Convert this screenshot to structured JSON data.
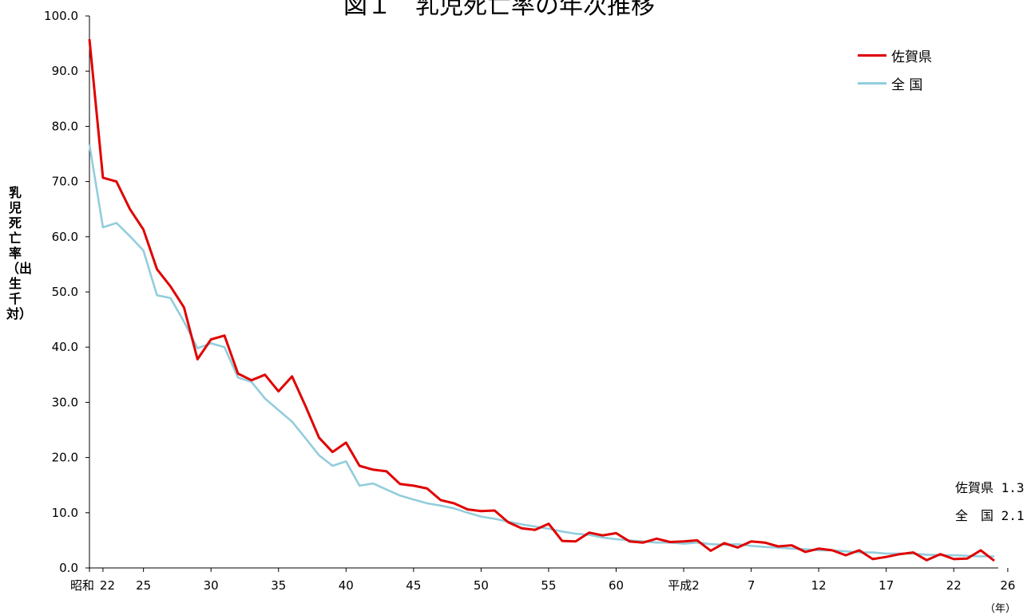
{
  "chart_data": {
    "type": "line",
    "title": "図１　乳児死亡率の年次推移",
    "ylabel": "乳児死亡率（出生千対）",
    "xunit": "（年）",
    "ylim": [
      0,
      100
    ],
    "yticks": [
      "0.0",
      "10.0",
      "20.0",
      "30.0",
      "40.0",
      "50.0",
      "60.0",
      "70.0",
      "80.0",
      "90.0",
      "100.0"
    ],
    "xticks": [
      {
        "i": 0,
        "label": "昭和"
      },
      {
        "i": 1,
        "label": "22"
      },
      {
        "i": 4,
        "label": "25"
      },
      {
        "i": 9,
        "label": "30"
      },
      {
        "i": 14,
        "label": "35"
      },
      {
        "i": 19,
        "label": "40"
      },
      {
        "i": 24,
        "label": "45"
      },
      {
        "i": 29,
        "label": "50"
      },
      {
        "i": 34,
        "label": "55"
      },
      {
        "i": 39,
        "label": "60"
      },
      {
        "i": 44,
        "label": "平成2"
      },
      {
        "i": 49,
        "label": "7"
      },
      {
        "i": 54,
        "label": "12"
      },
      {
        "i": 59,
        "label": "17"
      },
      {
        "i": 64,
        "label": "22"
      },
      {
        "i": 68,
        "label": "26"
      }
    ],
    "series": [
      {
        "name": "佐賀県",
        "color": "#e00000",
        "values": [
          95.8,
          70.7,
          70.0,
          65.0,
          61.3,
          54.1,
          51.0,
          47.2,
          37.8,
          41.4,
          42.1,
          35.2,
          34.0,
          35.0,
          32.0,
          34.7,
          29.3,
          23.6,
          21.0,
          22.7,
          18.5,
          17.8,
          17.5,
          15.2,
          14.9,
          14.4,
          12.3,
          11.7,
          10.6,
          10.3,
          10.4,
          8.3,
          7.2,
          6.9,
          8.0,
          4.9,
          4.8,
          6.4,
          5.9,
          6.3,
          4.8,
          4.6,
          5.3,
          4.7,
          4.8,
          5.0,
          3.1,
          4.5,
          3.7,
          4.8,
          4.6,
          3.9,
          4.1,
          2.9,
          3.5,
          3.2,
          2.3,
          3.2,
          1.6,
          2.0,
          2.5,
          2.8,
          1.4,
          2.5,
          1.6,
          1.7,
          3.2,
          1.3
        ]
      },
      {
        "name": "全 国",
        "color": "#92cddc",
        "values": [
          76.7,
          61.7,
          62.5,
          60.1,
          57.5,
          49.4,
          48.9,
          44.6,
          39.8,
          40.7,
          40.0,
          34.5,
          33.7,
          30.7,
          28.6,
          26.5,
          23.5,
          20.4,
          18.5,
          19.3,
          14.9,
          15.3,
          14.2,
          13.1,
          12.4,
          11.7,
          11.3,
          10.8,
          10.0,
          9.3,
          8.9,
          8.4,
          7.9,
          7.5,
          7.1,
          6.6,
          6.2,
          6.0,
          5.5,
          5.2,
          5.0,
          4.8,
          4.6,
          4.6,
          4.4,
          4.6,
          4.3,
          4.2,
          4.3,
          4.0,
          3.8,
          3.7,
          3.5,
          3.4,
          3.2,
          3.2,
          3.0,
          2.8,
          2.8,
          2.6,
          2.6,
          2.6,
          2.4,
          2.3,
          2.3,
          2.2,
          2.1,
          2.1
        ]
      }
    ],
    "legend": {
      "position": "top-right"
    },
    "final_labels": [
      {
        "name": "佐賀県",
        "value": "1.3"
      },
      {
        "name": "全　国",
        "value": "2.1"
      }
    ],
    "grid": false
  }
}
